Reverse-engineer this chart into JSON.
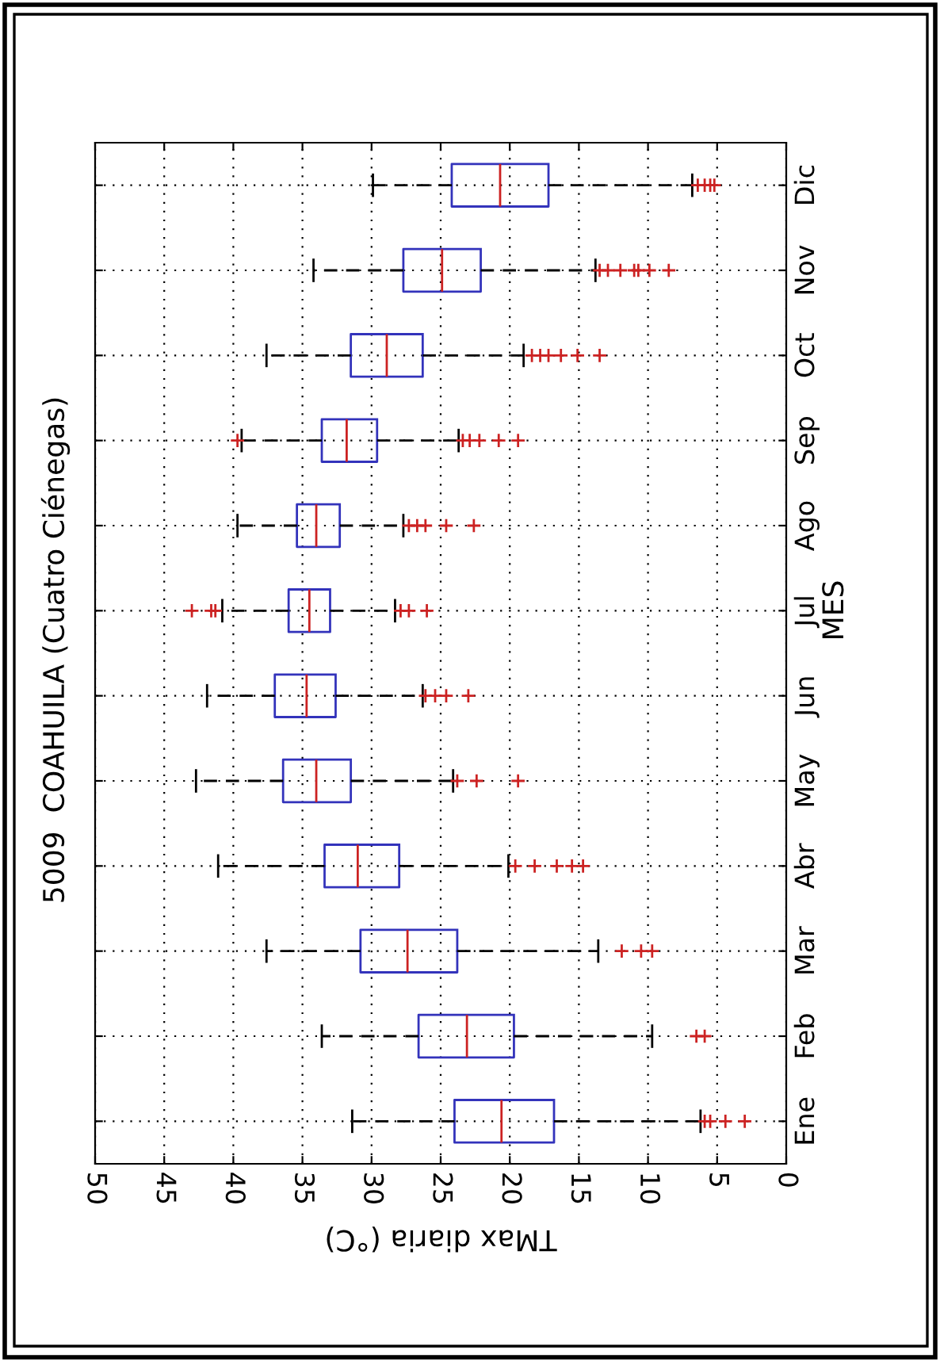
{
  "chart_data": {
    "type": "box",
    "title": "5009  COAHUILA (Cuatro Ciénegas)",
    "xlabel": "TMax diaria (°C)",
    "ylabel": "MES",
    "orientation": "horizontal",
    "categories": [
      "Dic",
      "Nov",
      "Oct",
      "Sep",
      "Ago",
      "Jul",
      "Jun",
      "May",
      "Abr",
      "Mar",
      "Feb",
      "Ene"
    ],
    "xlim": [
      50,
      0
    ],
    "xticks": [
      50,
      45,
      40,
      35,
      30,
      25,
      20,
      15,
      10,
      5,
      0
    ],
    "grid": true,
    "color": "#3333bb",
    "marker": "cross",
    "boxes": [
      {
        "low": 6.8,
        "q1": 17.2,
        "median": 20.7,
        "q3": 24.2,
        "high": 29.9,
        "outliers": [
          6.4,
          5.9,
          5.5,
          5.2
        ]
      },
      {
        "low": 13.8,
        "q1": 22.1,
        "median": 24.9,
        "q3": 27.7,
        "high": 34.2,
        "outliers": [
          13.5,
          12.9,
          12.0,
          11.0,
          10.7,
          9.9,
          8.5
        ]
      },
      {
        "low": 19.0,
        "q1": 26.3,
        "median": 28.9,
        "q3": 31.5,
        "high": 37.6,
        "outliers": [
          18.4,
          17.8,
          17.2,
          16.3,
          15.1,
          13.5
        ]
      },
      {
        "low": 23.7,
        "q1": 29.6,
        "median": 31.8,
        "q3": 33.6,
        "high": 39.4,
        "outliers": [
          39.7,
          23.4,
          22.9,
          22.2,
          20.8,
          19.4
        ]
      },
      {
        "low": 27.7,
        "q1": 32.3,
        "median": 34.0,
        "q3": 35.4,
        "high": 39.7,
        "outliers": [
          27.3,
          26.7,
          26.1,
          24.6,
          22.6
        ]
      },
      {
        "low": 28.3,
        "q1": 33.0,
        "median": 34.5,
        "q3": 36.0,
        "high": 40.8,
        "outliers": [
          43.0,
          41.6,
          41.3,
          27.9,
          27.3,
          26.0
        ]
      },
      {
        "low": 26.3,
        "q1": 32.6,
        "median": 34.7,
        "q3": 37.0,
        "high": 41.9,
        "outliers": [
          26.1,
          25.4,
          24.6,
          23.0
        ]
      },
      {
        "low": 24.1,
        "q1": 31.5,
        "median": 34.0,
        "q3": 36.4,
        "high": 42.7,
        "outliers": [
          23.8,
          22.4,
          19.4
        ]
      },
      {
        "low": 20.1,
        "q1": 28.0,
        "median": 31.0,
        "q3": 33.4,
        "high": 41.1,
        "outliers": [
          19.6,
          18.2,
          16.6,
          15.5,
          14.7
        ]
      },
      {
        "low": 13.6,
        "q1": 23.8,
        "median": 27.4,
        "q3": 30.8,
        "high": 37.6,
        "outliers": [
          11.9,
          10.5,
          9.7
        ]
      },
      {
        "low": 9.7,
        "q1": 19.7,
        "median": 23.1,
        "q3": 26.6,
        "high": 33.6,
        "outliers": [
          6.5,
          5.9
        ]
      },
      {
        "low": 6.2,
        "q1": 16.8,
        "median": 20.6,
        "q3": 24.0,
        "high": 31.4,
        "outliers": [
          5.9,
          5.5,
          4.4,
          3.0
        ]
      }
    ]
  }
}
